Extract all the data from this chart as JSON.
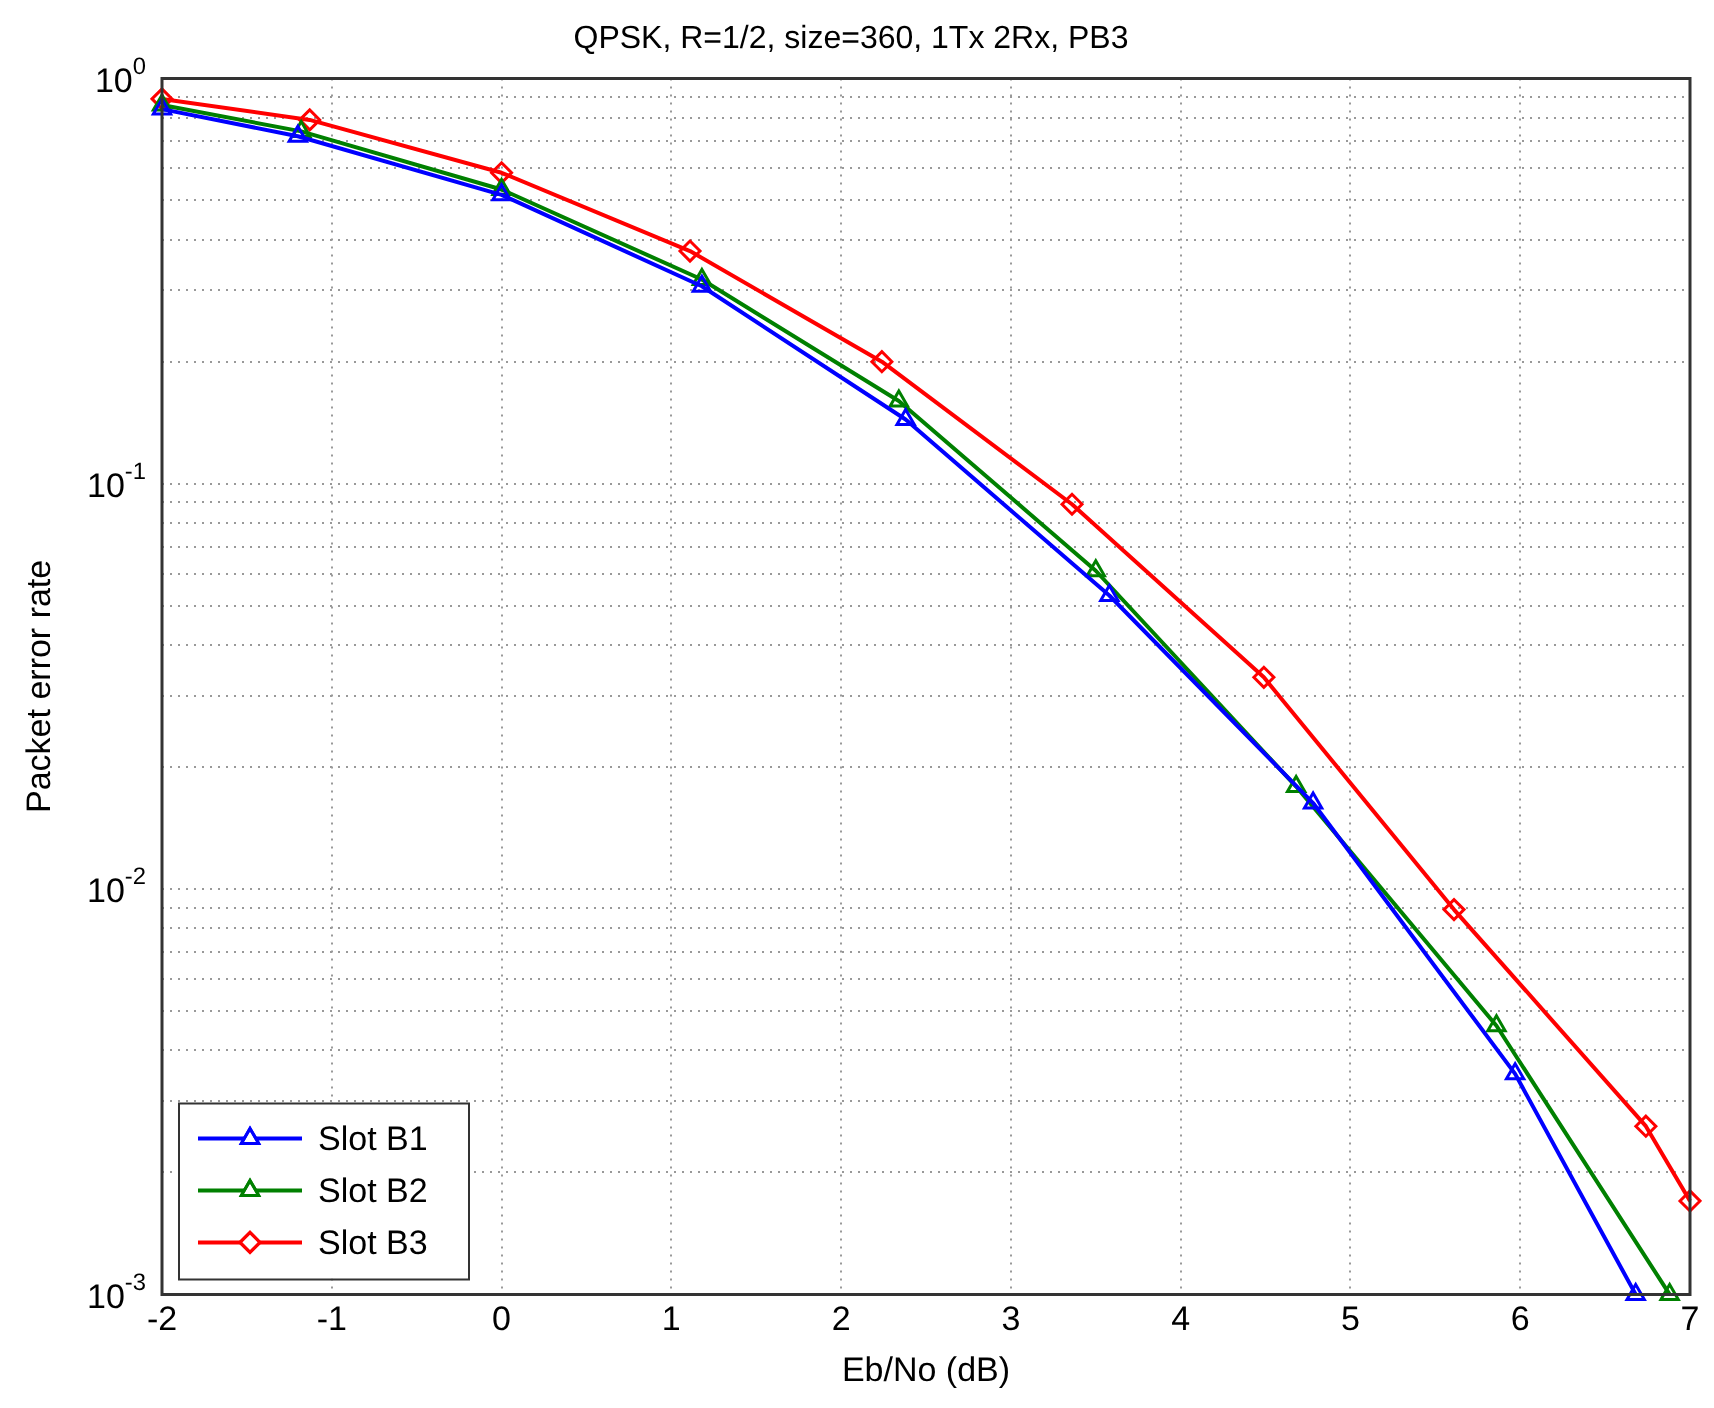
{
  "chart_data": {
    "type": "line",
    "title": "QPSK, R=1/2, size=360, 1Tx 2Rx, PB3",
    "xlabel": "Eb/No (dB)",
    "ylabel": "Packet error rate",
    "series": [
      {
        "name": "Slot B1",
        "color": "#0000ff",
        "marker": "triangle",
        "x": [
          -2,
          -1.2,
          0,
          1.18,
          2.38,
          3.58,
          4.78,
          5.97,
          6.68
        ],
        "values": [
          0.84,
          0.72,
          0.516,
          0.307,
          0.144,
          0.053,
          0.0163,
          0.0035,
          0.001
        ]
      },
      {
        "name": "Slot B2",
        "color": "#008000",
        "marker": "triangle",
        "x": [
          -2,
          -1.18,
          0,
          1.18,
          2.34,
          3.5,
          4.68,
          5.86,
          6.88
        ],
        "values": [
          0.86,
          0.74,
          0.532,
          0.319,
          0.16,
          0.061,
          0.0179,
          0.0046,
          0.001
        ]
      },
      {
        "name": "Slot B3",
        "color": "#ff0000",
        "marker": "diamond",
        "x": [
          -2,
          -1.13,
          0,
          1.11,
          2.24,
          3.36,
          4.49,
          5.61,
          6.74,
          7
        ],
        "values": [
          0.89,
          0.79,
          0.585,
          0.375,
          0.2,
          0.089,
          0.0333,
          0.0089,
          0.0026,
          0.0017
        ]
      }
    ],
    "log": "y",
    "xlim": [
      -2,
      7
    ],
    "xticks": [
      -2,
      -1,
      0,
      1,
      2,
      3,
      4,
      5,
      6,
      7
    ],
    "ylim": [
      0.001,
      1
    ],
    "yticks": [
      {
        "value": 0.001,
        "label": "10$^{-3}$"
      },
      {
        "value": 0.002,
        "label": null
      },
      {
        "value": 0.003,
        "label": null
      },
      {
        "value": 0.004,
        "label": null
      },
      {
        "value": 0.005,
        "label": null
      },
      {
        "value": 0.006,
        "label": null
      },
      {
        "value": 0.007,
        "label": null
      },
      {
        "value": 0.008,
        "label": null
      },
      {
        "value": 0.009,
        "label": null
      },
      {
        "value": 0.01,
        "label": "10$^{-2}$"
      },
      {
        "value": 0.02,
        "label": null
      },
      {
        "value": 0.03,
        "label": null
      },
      {
        "value": 0.04,
        "label": null
      },
      {
        "value": 0.05,
        "label": null
      },
      {
        "value": 0.06,
        "label": null
      },
      {
        "value": 0.07,
        "label": null
      },
      {
        "value": 0.08,
        "label": null
      },
      {
        "value": 0.09,
        "label": null
      },
      {
        "value": 0.1,
        "label": "10$^{-1}$"
      },
      {
        "value": 0.2,
        "label": null
      },
      {
        "value": 0.3,
        "label": null
      },
      {
        "value": 0.4,
        "label": null
      },
      {
        "value": 0.5,
        "label": null
      },
      {
        "value": 0.6,
        "label": null
      },
      {
        "value": 0.7,
        "label": null
      },
      {
        "value": 0.8,
        "label": null
      },
      {
        "value": 0.9,
        "label": null
      },
      {
        "value": 1,
        "label": "10$^{0}$"
      }
    ],
    "grid": true,
    "legend": "bottom left",
    "line_style": "solid"
  }
}
